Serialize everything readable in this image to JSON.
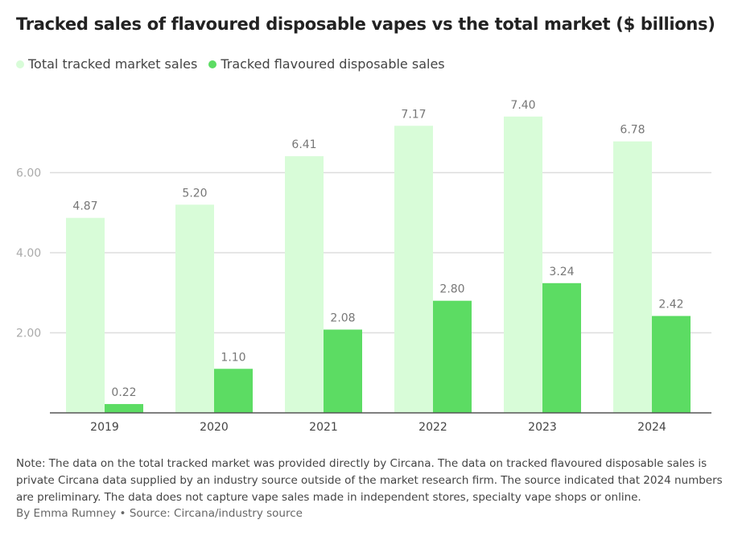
{
  "chart_data": {
    "type": "bar",
    "title": "Tracked sales of flavoured disposable vapes vs the total market ($ billions)",
    "categories": [
      "2019",
      "2020",
      "2021",
      "2022",
      "2023",
      "2024"
    ],
    "series": [
      {
        "name": "Total tracked market sales",
        "color": "#d8fcd8",
        "values": [
          4.87,
          5.2,
          6.41,
          7.17,
          7.4,
          6.78
        ],
        "labels": [
          "4.87",
          "5.20",
          "6.41",
          "7.17",
          "7.40",
          "6.78"
        ]
      },
      {
        "name": "Tracked flavoured disposable sales",
        "color": "#5cdc63",
        "values": [
          0.22,
          1.1,
          2.08,
          2.8,
          3.24,
          2.42
        ],
        "labels": [
          "0.22",
          "1.10",
          "2.08",
          "2.80",
          "3.24",
          "2.42"
        ]
      }
    ],
    "yticks": [
      2,
      4,
      6
    ],
    "ytick_labels": [
      "2.00",
      "4.00",
      "6.00"
    ],
    "ylim": [
      0,
      7.8
    ],
    "grid": true,
    "legend": "top-left",
    "xlabel": "",
    "ylabel": ""
  },
  "note": "Note: The data on the total tracked market was provided directly by Circana. The data on tracked flavoured disposable sales is private Circana data supplied by an industry source outside of the market research firm. The source indicated that 2024 numbers are preliminary. The data does not capture vape sales made in independent stores, specialty vape shops or online.",
  "byline": "By Emma Rumney • Source: Circana/industry source"
}
